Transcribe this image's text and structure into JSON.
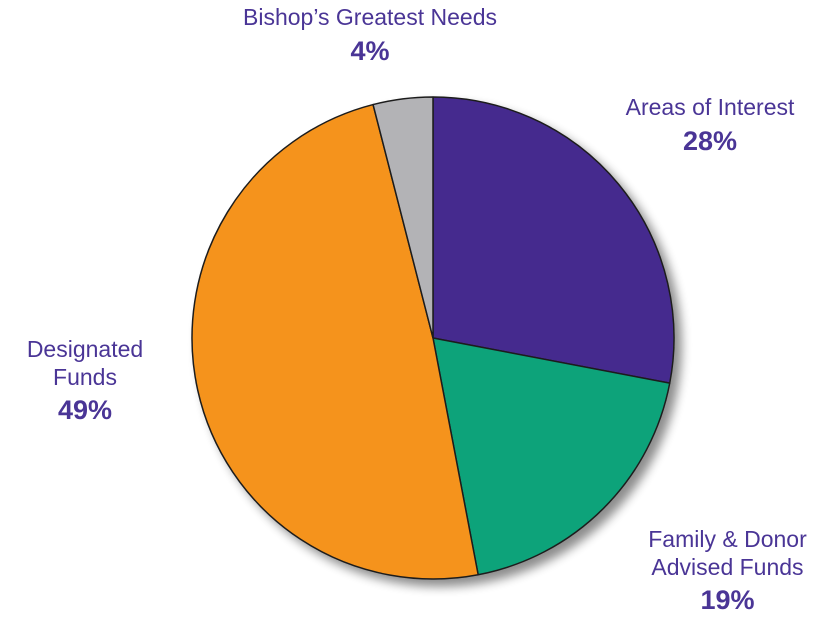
{
  "chart_data": {
    "type": "pie",
    "start_angle_deg": 0,
    "direction": "clockwise",
    "slices": [
      {
        "label": "Areas of Interest",
        "display": "Areas of Interest",
        "value": 28,
        "value_label": "28%",
        "color": "#452c8e"
      },
      {
        "label": "Family & Donor Advised Funds",
        "display": "Family & Donor\nAdvised Funds",
        "value": 19,
        "value_label": "19%",
        "color": "#0ea37a"
      },
      {
        "label": "Designated Funds",
        "display": "Designated\nFunds",
        "value": 49,
        "value_label": "49%",
        "color": "#f5931c"
      },
      {
        "label": "Bishop’s Greatest Needs",
        "display": "Bishop’s Greatest Needs",
        "value": 4,
        "value_label": "4%",
        "color": "#b3b3b6"
      }
    ]
  }
}
